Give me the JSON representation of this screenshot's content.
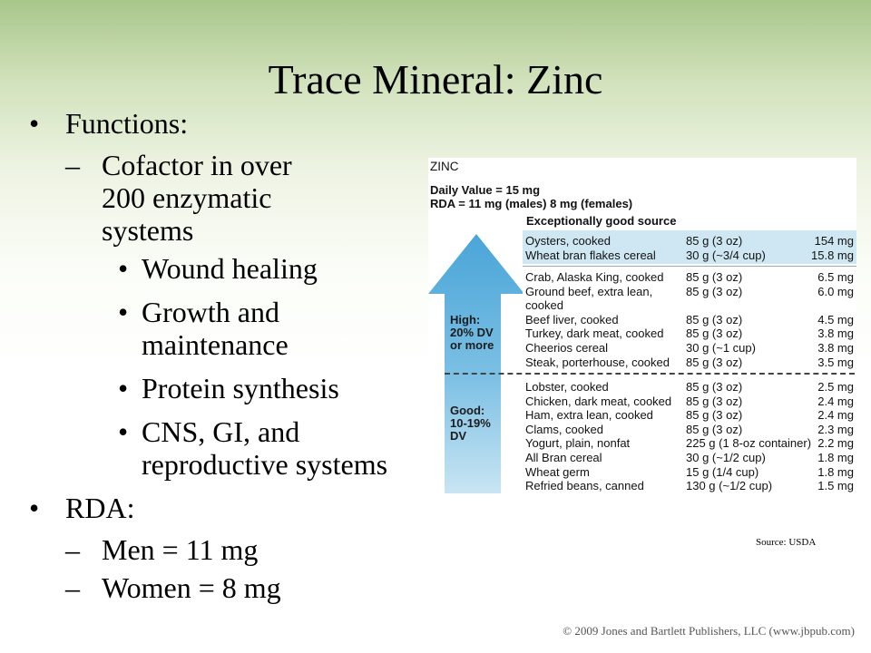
{
  "slide": {
    "title": "Trace Mineral: Zinc",
    "functions_label": "Functions:",
    "cofactor": "Cofactor in over 200 enzymatic systems",
    "sub_items": [
      "Wound healing",
      "Growth and maintenance",
      "Protein synthesis",
      "CNS, GI, and reproductive systems"
    ],
    "rda_label": "RDA:",
    "rda_items": [
      "Men = 11 mg",
      "Women = 8 mg"
    ]
  },
  "figure": {
    "title": "ZINC",
    "daily_value": "Daily Value = 15 mg",
    "rda_line": "RDA = 11 mg (males)  8 mg (females)",
    "exceptional_label": "Exceptionally good source",
    "high_label": [
      "High:",
      "20% DV",
      "or more"
    ],
    "good_label": [
      "Good:",
      "10-19%",
      "DV"
    ],
    "exceptional_rows": [
      {
        "food": "Oysters, cooked",
        "amount": "85 g (3 oz)",
        "mg": "154 mg"
      },
      {
        "food": "Wheat bran flakes cereal",
        "amount": "30 g (~3/4 cup)",
        "mg": "15.8 mg"
      }
    ],
    "high_rows": [
      {
        "food": "Crab, Alaska King, cooked",
        "amount": "85 g (3 oz)",
        "mg": "6.5 mg"
      },
      {
        "food": "Ground beef, extra lean,",
        "amount": "85 g (3 oz)",
        "mg": "6.0 mg"
      },
      {
        "food": "   cooked",
        "amount": "",
        "mg": ""
      },
      {
        "food": "Beef liver, cooked",
        "amount": "85 g (3 oz)",
        "mg": "4.5 mg"
      },
      {
        "food": "Turkey, dark meat, cooked",
        "amount": "85 g (3 oz)",
        "mg": "3.8 mg"
      },
      {
        "food": "Cheerios cereal",
        "amount": "30 g (~1 cup)",
        "mg": "3.8 mg"
      },
      {
        "food": "Steak, porterhouse, cooked",
        "amount": "85 g (3 oz)",
        "mg": "3.5 mg"
      }
    ],
    "good_rows": [
      {
        "food": "Lobster, cooked",
        "amount": "85 g (3 oz)",
        "mg": "2.5 mg"
      },
      {
        "food": "Chicken, dark meat, cooked",
        "amount": "85 g (3 oz)",
        "mg": "2.4 mg"
      },
      {
        "food": "Ham, extra lean, cooked",
        "amount": "85 g (3 oz)",
        "mg": "2.4 mg"
      },
      {
        "food": "Clams, cooked",
        "amount": "85 g (3 oz)",
        "mg": "2.3 mg"
      },
      {
        "food": "Yogurt, plain, nonfat",
        "amount": "225 g (1 8-oz container)",
        "mg": "2.2 mg"
      },
      {
        "food": "All Bran cereal",
        "amount": "30 g (~1/2 cup)",
        "mg": "1.8 mg"
      },
      {
        "food": "Wheat germ",
        "amount": "15 g (1/4 cup)",
        "mg": "1.8 mg"
      },
      {
        "food": "Refried beans, canned",
        "amount": "130 g (~1/2 cup)",
        "mg": "1.5 mg"
      }
    ],
    "arrow_color": "#5aaedb",
    "band_color": "#cfe7f3"
  },
  "source": "Source: USDA",
  "copyright": "© 2009 Jones and Bartlett Publishers, LLC (www.jbpub.com)"
}
